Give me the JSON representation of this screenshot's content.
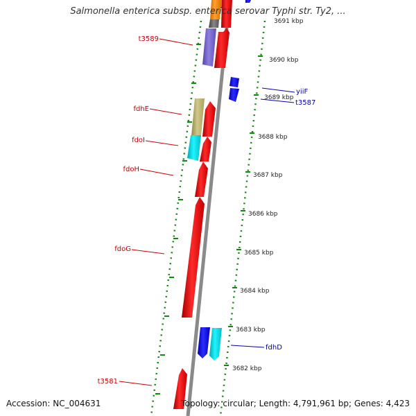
{
  "title": "Salmonella enterica subsp. enterica serovar Typhi str. Ty2, ...",
  "accession": "Accession: NC_004631",
  "summary": "Topology: circular; Length: 4,791,961 bp; Genes: 4,423",
  "scale_labels": [
    "3691 kbp",
    "3690 kbp",
    "3689 kbp",
    "3688 kbp",
    "3687 kbp",
    "3686 kbp",
    "3685 kbp",
    "3684 kbp",
    "3683 kbp",
    "3682 kbp"
  ],
  "gene_labels": [
    {
      "text": "t3589",
      "strand": "reverse"
    },
    {
      "text": "fdhE",
      "strand": "reverse"
    },
    {
      "text": "fdoI",
      "strand": "reverse"
    },
    {
      "text": "fdoH",
      "strand": "reverse"
    },
    {
      "text": "fdoG",
      "strand": "reverse"
    },
    {
      "text": "t3581",
      "strand": "reverse"
    },
    {
      "text": "yiiF",
      "strand": "forward"
    },
    {
      "text": "t3587",
      "strand": "forward"
    },
    {
      "text": "fdhD",
      "strand": "forward"
    }
  ],
  "colors": {
    "reverse_label": "#cc0000",
    "forward_label": "#0000aa",
    "cds_red": "#ff0000",
    "cds_blue": "#1a1aff",
    "cds_cyan": "#00e5ee",
    "cds_purple": "#7b68cc",
    "cds_khaki": "#bdb76b",
    "cds_orange": "#ff8c00",
    "cds_gray": "#666666",
    "backbone": "#888888",
    "gc_ticks": "#118811"
  }
}
